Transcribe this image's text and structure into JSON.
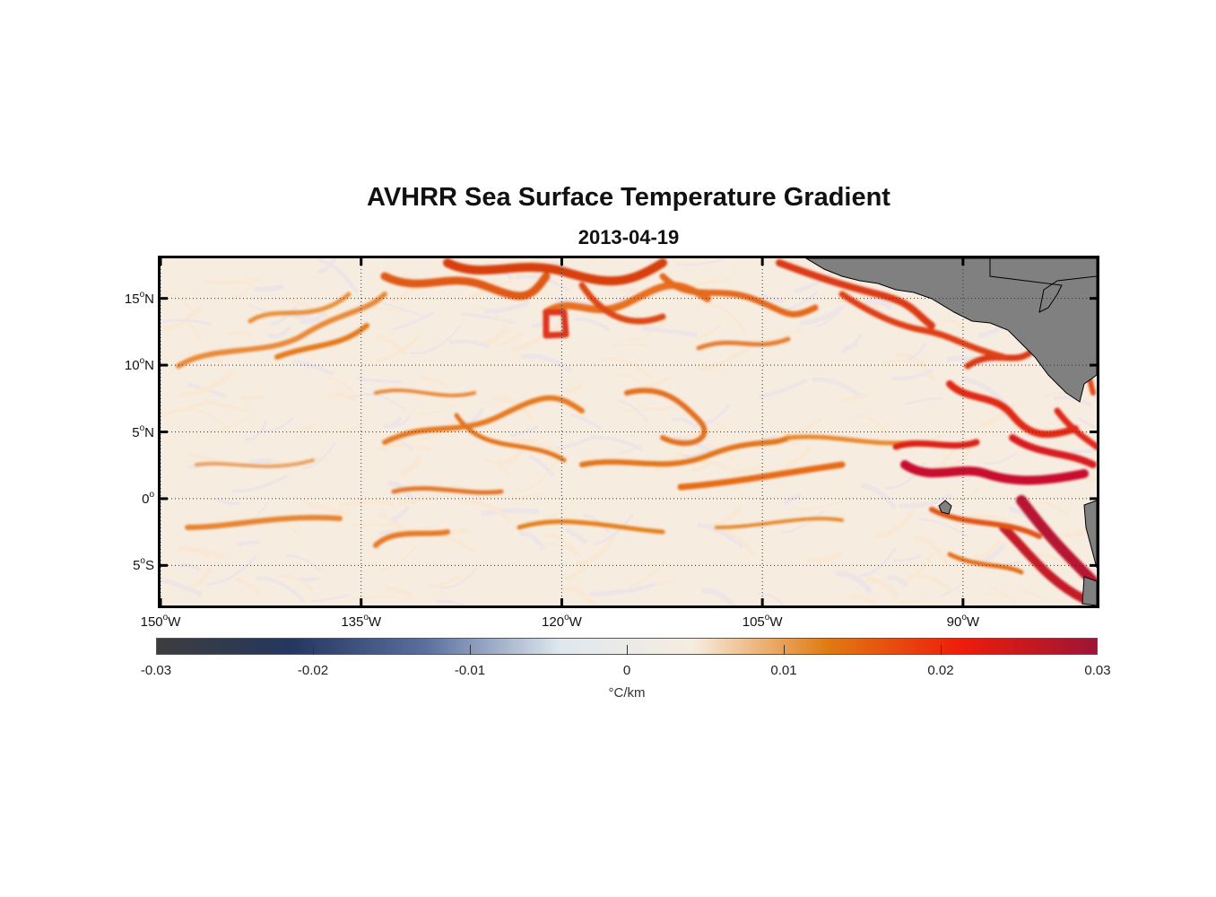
{
  "figure": {
    "title": "AVHRR Sea Surface Temperature Gradient",
    "date": "2013-04-19"
  },
  "map": {
    "lon_range": [
      -150,
      -80
    ],
    "lat_range": [
      -8,
      18
    ],
    "lat_ticks": [
      {
        "value": 15,
        "num": "15",
        "hemi": "N"
      },
      {
        "value": 10,
        "num": "10",
        "hemi": "N"
      },
      {
        "value": 5,
        "num": "5",
        "hemi": "N"
      },
      {
        "value": 0,
        "num": "0",
        "hemi": ""
      },
      {
        "value": -5,
        "num": "5",
        "hemi": "S"
      }
    ],
    "lon_ticks": [
      {
        "value": -150,
        "num": "150",
        "hemi": "W"
      },
      {
        "value": -135,
        "num": "135",
        "hemi": "W"
      },
      {
        "value": -120,
        "num": "120",
        "hemi": "W"
      },
      {
        "value": -105,
        "num": "105",
        "hemi": "W"
      },
      {
        "value": -90,
        "num": "90",
        "hemi": "W"
      }
    ],
    "grid": true,
    "land_color": "#808080",
    "ocean_background": "#f7ece0"
  },
  "colorbar": {
    "min": -0.03,
    "max": 0.03,
    "tick_labels": [
      "-0.03",
      "-0.02",
      "-0.01",
      "0",
      "0.01",
      "0.02",
      "0.03"
    ],
    "unit": "°C/km",
    "colors": [
      "#3d3d3d",
      "#24375f",
      "#5a6f9e",
      "#dfe8ee",
      "#f7ece0",
      "#e07a12",
      "#ee1c0b",
      "#9c1536"
    ]
  }
}
